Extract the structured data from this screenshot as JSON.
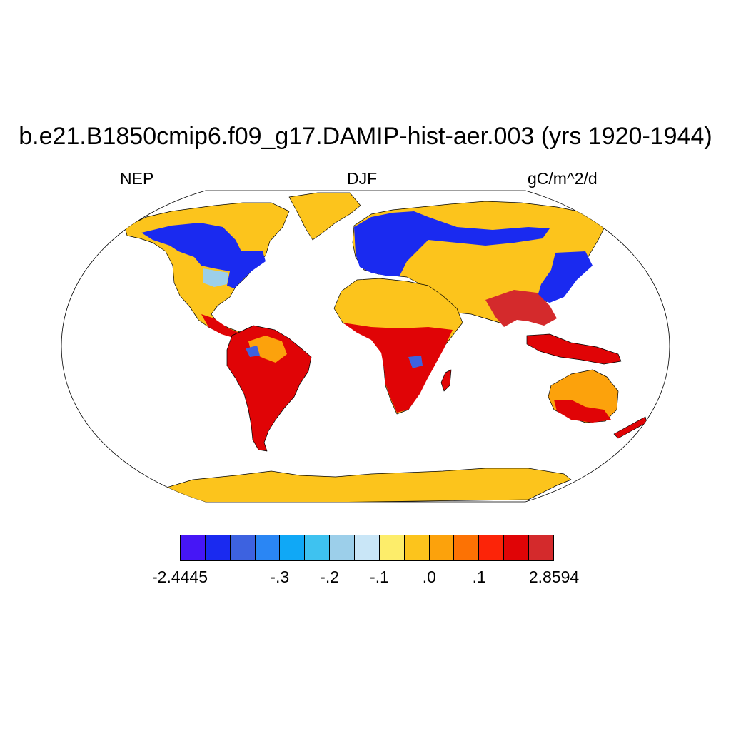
{
  "title": "b.e21.B1850cmip6.f09_g17.DAMIP-hist-aer.003 (yrs 1920-1944)",
  "left_string": "NEP",
  "center_string": "DJF",
  "right_string": "gC/m^2/d",
  "colorbar": {
    "colors": [
      "#4616f6",
      "#1a2af0",
      "#3d62e0",
      "#2a86f4",
      "#10a8f6",
      "#3ec2f0",
      "#9ccfea",
      "#c9e6f7",
      "#fded6a",
      "#fcc41c",
      "#fca20c",
      "#fc7204",
      "#fc2408",
      "#e00406",
      "#d42a2c"
    ],
    "labels": [
      "-2.4445",
      "-.3",
      "-.2",
      "-.1",
      ".0",
      ".1",
      "2.8594"
    ],
    "label_boundaries": [
      0,
      4,
      6,
      8,
      10,
      12,
      15
    ]
  },
  "legend_colors": {
    "ocean": "#ffffff",
    "coastline": "#000000",
    "neutral_land": "#fcc41c",
    "positive_land": "#d42a2c",
    "negative_land": "#1a2af0"
  },
  "projection": "Robinson"
}
